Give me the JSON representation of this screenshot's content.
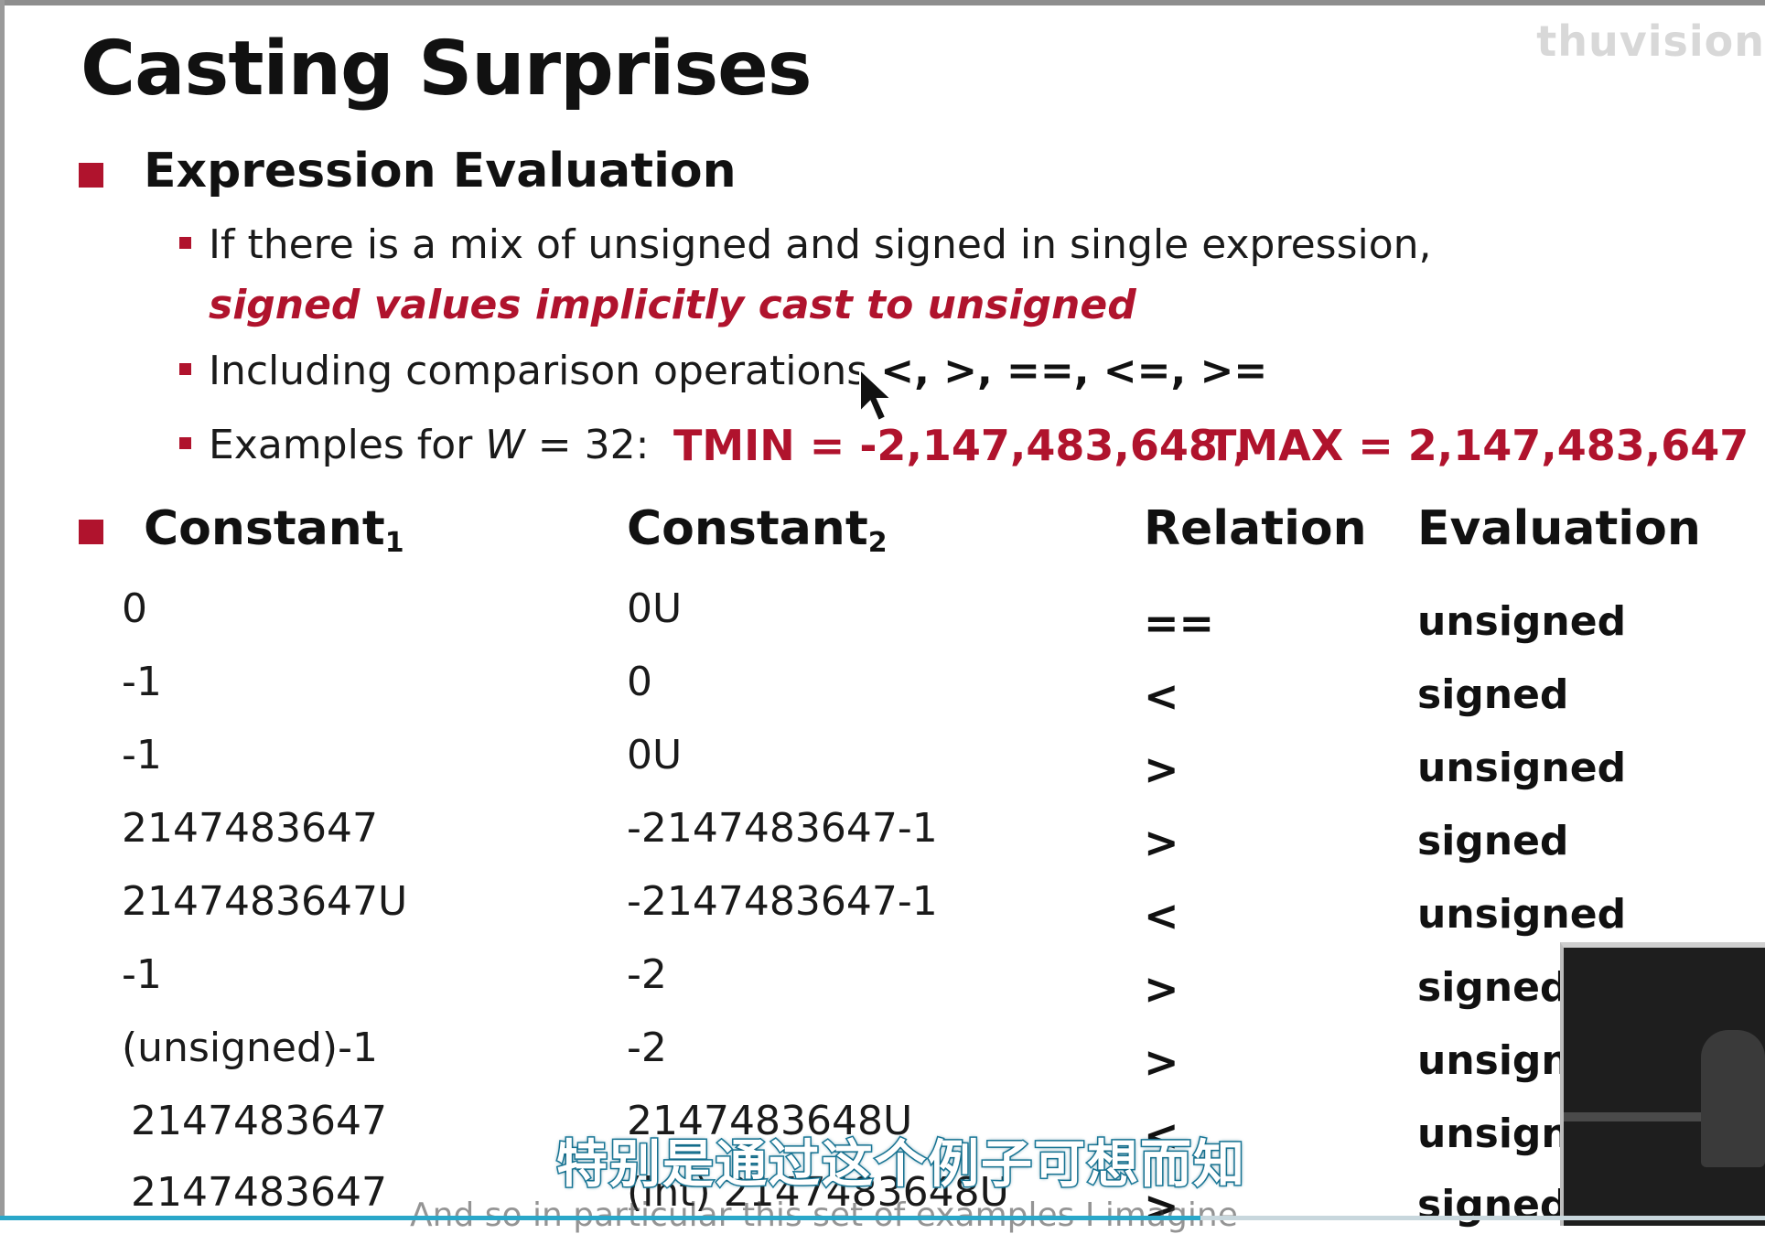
{
  "watermark": "thuvision",
  "slide": {
    "title": "Casting Surprises",
    "section1": "Expression Evaluation",
    "bullet1_line1": "If there is a mix of unsigned and signed in single expression,",
    "bullet1_line2": "signed values implicitly cast to unsigned",
    "bullet2_text": "Including comparison operations",
    "bullet2_ops": "<, >, ==, <=, >=",
    "bullet3_prefix": "Examples for ",
    "bullet3_w": "W",
    "bullet3_eq": " = 32:",
    "tmin": "TMIN = -2,147,483,648 ,",
    "tmax": "TMAX = 2,147,483,647",
    "table": {
      "headers": {
        "c1": "Constant",
        "c1_sub": "1",
        "c2": "Constant",
        "c2_sub": "2",
        "relation": "Relation",
        "evaluation": "Evaluation"
      },
      "rows": [
        {
          "c1": "0",
          "c2": "0U",
          "rel": "==",
          "eval": "unsigned"
        },
        {
          "c1": "-1",
          "c2": "0",
          "rel": "<",
          "eval": "signed"
        },
        {
          "c1": "-1",
          "c2": "0U",
          "rel": ">",
          "eval": "unsigned"
        },
        {
          "c1": "2147483647",
          "c2": "-2147483647-1",
          "rel": ">",
          "eval": "signed"
        },
        {
          "c1": "2147483647U",
          "c2": "-2147483647-1",
          "rel": "<",
          "eval": "unsigned"
        },
        {
          "c1": "-1",
          "c2": "-2",
          "rel": ">",
          "eval": "signed"
        },
        {
          "c1": "(unsigned)-1",
          "c2": "-2",
          "rel": ">",
          "eval": "unsigne"
        },
        {
          "c1": "2147483647",
          "c2": "2147483648U",
          "rel": "<",
          "eval": "unsigne"
        },
        {
          "c1": "2147483647",
          "c2": "(int) 2147483648U",
          "rel": ">",
          "eval": "signed"
        }
      ]
    }
  },
  "subtitle_zh": "特别是通过这个例子可想而知",
  "subtitle_en": "And so in particular this set of examples I imagine",
  "player": {
    "progress": 0.68
  },
  "colors": {
    "accent": "#b0132d",
    "subtitle_stroke": "#1e7fa0",
    "progress": "#2aa7c9"
  }
}
